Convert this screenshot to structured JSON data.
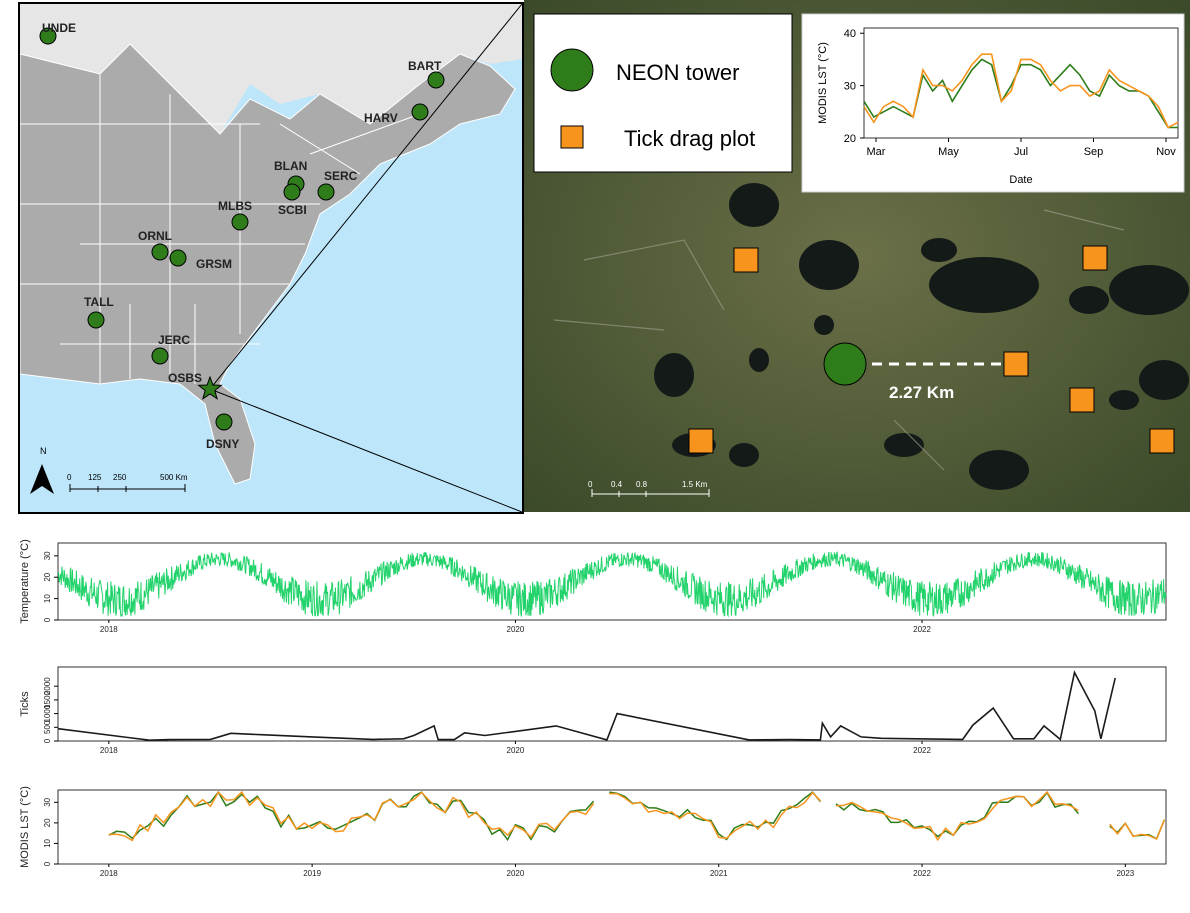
{
  "map": {
    "north_label": "N",
    "scale_labels": [
      "0",
      "125",
      "250",
      "500 Km"
    ],
    "sites": [
      {
        "label": "UNDE"
      },
      {
        "label": "BART"
      },
      {
        "label": "HARV"
      },
      {
        "label": "BLAN"
      },
      {
        "label": "SERC"
      },
      {
        "label": "SCBI"
      },
      {
        "label": "MLBS"
      },
      {
        "label": "ORNL"
      },
      {
        "label": "GRSM"
      },
      {
        "label": "TALL"
      },
      {
        "label": "JERC"
      },
      {
        "label": "OSBS"
      },
      {
        "label": "DSNY"
      }
    ],
    "star_site": "OSBS"
  },
  "satellite": {
    "legend": {
      "tower": "NEON tower",
      "plot": "Tick drag plot"
    },
    "distance_label": "2.27 Km",
    "scale_labels": [
      "0",
      "0.4",
      "0.8",
      "1.5 Km"
    ],
    "colors": {
      "tower": "#2e7d1a",
      "plot": "#f7941d"
    }
  },
  "chart_data": [
    {
      "type": "line",
      "title": "",
      "xlabel": "Date",
      "ylabel": "MODIS LST (°C)",
      "x_ticks": [
        "Mar",
        "May",
        "Jul",
        "Sep",
        "Nov"
      ],
      "y_ticks": [
        20,
        30,
        40
      ],
      "ylim": [
        20,
        41
      ],
      "series": [
        {
          "color": "#2e7d1a",
          "values": [
            27,
            24,
            25,
            26,
            25,
            24,
            32,
            29,
            31,
            27,
            30,
            33,
            35,
            34,
            27,
            30,
            34,
            34,
            33,
            30,
            32,
            34,
            32,
            29,
            28,
            32,
            30,
            29,
            29,
            28,
            25,
            22,
            22
          ]
        },
        {
          "color": "#f7941d",
          "values": [
            26,
            23,
            26,
            27,
            26,
            24,
            33,
            30,
            30,
            29,
            31,
            34,
            36,
            36,
            27,
            29,
            35,
            35,
            34,
            31,
            29,
            30,
            30,
            28,
            29,
            33,
            31,
            30,
            29,
            28,
            26,
            22,
            23
          ]
        }
      ]
    },
    {
      "type": "line",
      "ylabel": "Temperature (°C)",
      "x_ticks": [
        "2018",
        "2020",
        "2022"
      ],
      "y_ticks": [
        0,
        10,
        20,
        30
      ],
      "ylim": [
        0,
        36
      ],
      "series": [
        {
          "color": "#22d36b",
          "values": "daily 2018–2023, seasonal cycle between ~5 and ~33"
        }
      ]
    },
    {
      "type": "line",
      "ylabel": "Ticks",
      "x_ticks": [
        "2018",
        "2020",
        "2022"
      ],
      "y_ticks": [
        0,
        500,
        1000,
        1500,
        2000
      ],
      "ylim": [
        0,
        2700
      ],
      "series": [
        {
          "color": "#1a1a1a",
          "points": [
            [
              2017.75,
              450
            ],
            [
              2018.2,
              30
            ],
            [
              2018.3,
              50
            ],
            [
              2018.5,
              60
            ],
            [
              2018.6,
              280
            ],
            [
              2018.75,
              230
            ],
            [
              2019.0,
              150
            ],
            [
              2019.3,
              60
            ],
            [
              2019.45,
              80
            ],
            [
              2019.5,
              200
            ],
            [
              2019.6,
              550
            ],
            [
              2019.62,
              50
            ],
            [
              2019.7,
              50
            ],
            [
              2019.75,
              300
            ],
            [
              2019.85,
              200
            ],
            [
              2020.2,
              550
            ],
            [
              2020.45,
              40
            ],
            [
              2020.5,
              1000
            ],
            [
              2021.15,
              40
            ],
            [
              2021.35,
              50
            ],
            [
              2021.5,
              40
            ],
            [
              2021.51,
              650
            ],
            [
              2021.55,
              150
            ],
            [
              2021.6,
              550
            ],
            [
              2021.7,
              150
            ],
            [
              2021.8,
              100
            ],
            [
              2022.2,
              60
            ],
            [
              2022.25,
              580
            ],
            [
              2022.35,
              1200
            ],
            [
              2022.45,
              80
            ],
            [
              2022.55,
              80
            ],
            [
              2022.6,
              550
            ],
            [
              2022.68,
              60
            ],
            [
              2022.75,
              2500
            ],
            [
              2022.85,
              1100
            ],
            [
              2022.88,
              80
            ],
            [
              2022.95,
              2300
            ]
          ]
        }
      ]
    },
    {
      "type": "line",
      "ylabel": "MODIS LST (°C)",
      "x_ticks": [
        "2018",
        "2019",
        "2020",
        "2021",
        "2022",
        "2023"
      ],
      "y_ticks": [
        0,
        10,
        20,
        30
      ],
      "ylim": [
        0,
        36
      ],
      "series": [
        {
          "color": "#2e7d1a",
          "values": "biweekly 2018–2023, 10–35 °C"
        },
        {
          "color": "#f7941d",
          "values": "biweekly 2018–2023, 10–35 °C"
        }
      ]
    }
  ]
}
